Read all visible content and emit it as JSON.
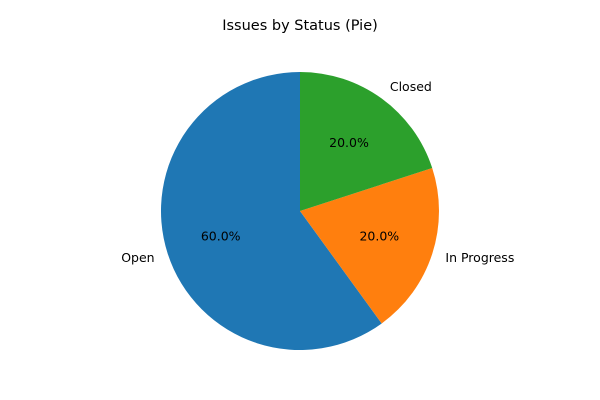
{
  "chart_data": {
    "type": "pie",
    "title": "Issues by Status (Pie)",
    "categories": [
      "Open",
      "In Progress",
      "Closed"
    ],
    "values": [
      60,
      20,
      20
    ],
    "percent_labels": [
      "60.0%",
      "20.0%",
      "20.0%"
    ],
    "colors": [
      "#1f77b4",
      "#ff7f0e",
      "#2ca02c"
    ],
    "start_angle_deg": 90,
    "direction": "counterclockwise",
    "legend": "none"
  }
}
